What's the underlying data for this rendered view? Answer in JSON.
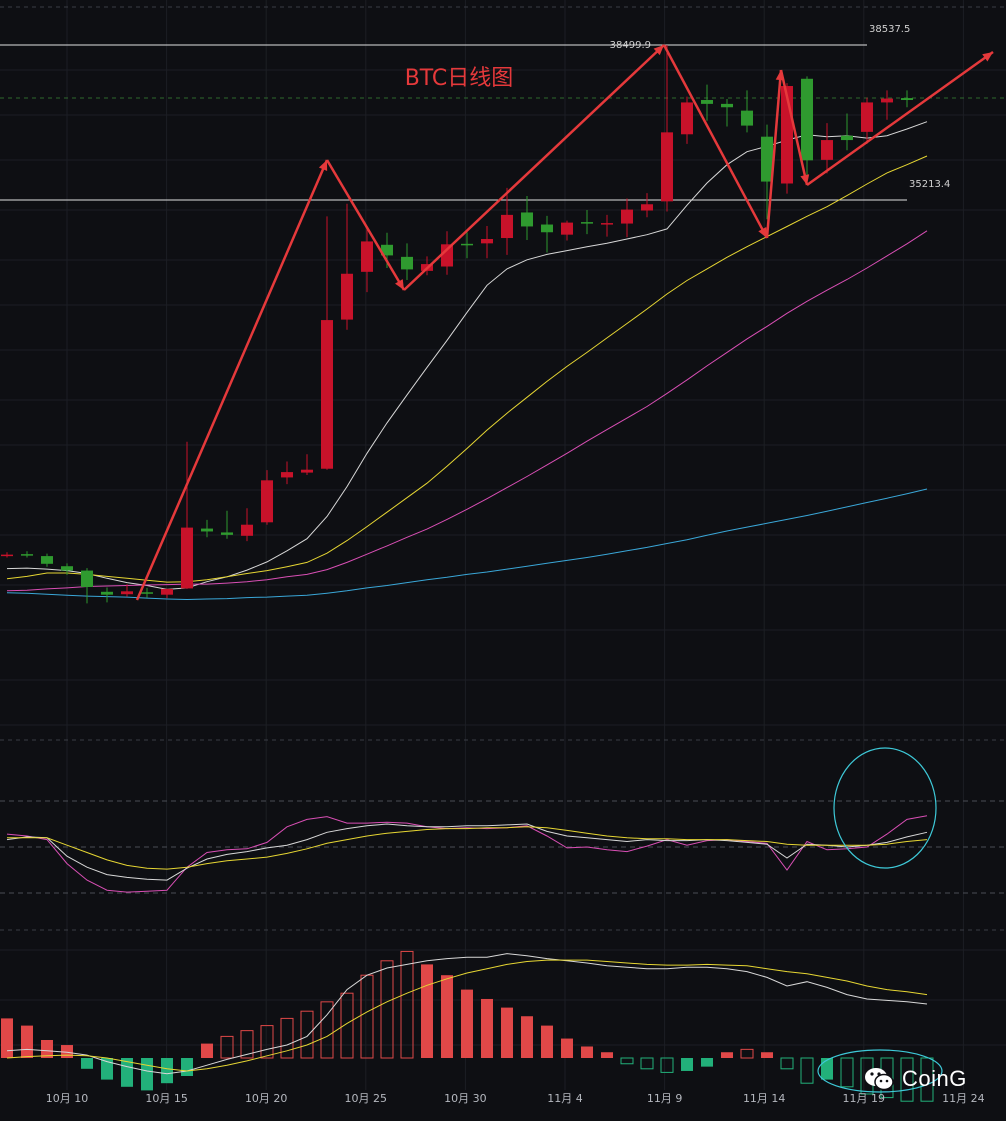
{
  "chart_data": [
    {
      "type": "candlestick",
      "title": "BTC日线图",
      "x_ticks": [
        "10月 10",
        "10月 15",
        "10月 20",
        "10月 25",
        "10月 30",
        "11月 4",
        "11月 9",
        "11月 14",
        "11月 19",
        "11月 24"
      ],
      "price_levels": [
        {
          "label": "38537.5",
          "value": 38537.5
        },
        {
          "label": "38499.9",
          "value": 38499.9
        },
        {
          "label": "35213.4",
          "value": 35213.4
        }
      ],
      "y_range": [
        26800,
        39300
      ],
      "candles": [
        {
          "date": "10-08",
          "o": 27940,
          "h": 27990,
          "l": 27880,
          "c": 27940,
          "color": "red"
        },
        {
          "date": "10-09",
          "o": 27940,
          "h": 28010,
          "l": 27880,
          "c": 27950,
          "color": "green"
        },
        {
          "date": "10-10",
          "o": 27910,
          "h": 27960,
          "l": 27690,
          "c": 27750,
          "color": "green"
        },
        {
          "date": "10-11",
          "o": 27700,
          "h": 27760,
          "l": 27520,
          "c": 27610,
          "color": "green"
        },
        {
          "date": "10-12",
          "o": 27610,
          "h": 27660,
          "l": 26930,
          "c": 27270,
          "color": "green"
        },
        {
          "date": "10-13",
          "o": 27170,
          "h": 27260,
          "l": 26950,
          "c": 27110,
          "color": "green"
        },
        {
          "date": "10-14",
          "o": 27120,
          "h": 27330,
          "l": 27070,
          "c": 27180,
          "color": "red"
        },
        {
          "date": "10-15",
          "o": 27160,
          "h": 27250,
          "l": 27050,
          "c": 27150,
          "color": "green"
        },
        {
          "date": "10-16",
          "o": 27110,
          "h": 27230,
          "l": 27040,
          "c": 27230,
          "color": "red"
        },
        {
          "date": "10-17",
          "o": 27240,
          "h": 30280,
          "l": 27230,
          "c": 28500,
          "color": "red"
        },
        {
          "date": "10-18",
          "o": 28480,
          "h": 28660,
          "l": 28300,
          "c": 28420,
          "color": "green"
        },
        {
          "date": "10-19",
          "o": 28400,
          "h": 28850,
          "l": 28270,
          "c": 28350,
          "color": "green"
        },
        {
          "date": "10-20",
          "o": 28330,
          "h": 28900,
          "l": 28220,
          "c": 28560,
          "color": "red"
        },
        {
          "date": "10-21",
          "o": 28610,
          "h": 29690,
          "l": 28560,
          "c": 29480,
          "color": "red"
        },
        {
          "date": "10-22",
          "o": 29540,
          "h": 29870,
          "l": 29400,
          "c": 29650,
          "color": "red"
        },
        {
          "date": "10-23",
          "o": 29640,
          "h": 30020,
          "l": 29590,
          "c": 29700,
          "color": "red"
        },
        {
          "date": "10-24",
          "o": 29720,
          "h": 34950,
          "l": 29700,
          "c": 32800,
          "color": "red"
        },
        {
          "date": "10-25",
          "o": 32810,
          "h": 35210,
          "l": 32600,
          "c": 33760,
          "color": "red"
        },
        {
          "date": "10-26",
          "o": 33800,
          "h": 34700,
          "l": 33380,
          "c": 34430,
          "color": "red"
        },
        {
          "date": "10-27",
          "o": 34360,
          "h": 34610,
          "l": 33880,
          "c": 34140,
          "color": "green"
        },
        {
          "date": "10-28",
          "o": 34110,
          "h": 34390,
          "l": 33630,
          "c": 33850,
          "color": "green"
        },
        {
          "date": "10-29",
          "o": 33820,
          "h": 34120,
          "l": 33730,
          "c": 33960,
          "color": "red"
        },
        {
          "date": "10-30",
          "o": 33910,
          "h": 34640,
          "l": 33740,
          "c": 34370,
          "color": "red"
        },
        {
          "date": "10-31",
          "o": 34360,
          "h": 34620,
          "l": 34080,
          "c": 34380,
          "color": "green"
        },
        {
          "date": "11-01",
          "o": 34390,
          "h": 34750,
          "l": 34080,
          "c": 34480,
          "color": "red"
        },
        {
          "date": "11-02",
          "o": 34500,
          "h": 35540,
          "l": 34150,
          "c": 34980,
          "color": "red"
        },
        {
          "date": "11-03",
          "o": 35030,
          "h": 35370,
          "l": 34460,
          "c": 34740,
          "color": "green"
        },
        {
          "date": "11-04",
          "o": 34780,
          "h": 34960,
          "l": 34200,
          "c": 34620,
          "color": "green"
        },
        {
          "date": "11-05",
          "o": 34570,
          "h": 34860,
          "l": 34450,
          "c": 34820,
          "color": "red"
        },
        {
          "date": "11-06",
          "o": 34830,
          "h": 35080,
          "l": 34580,
          "c": 34810,
          "color": "green"
        },
        {
          "date": "11-07",
          "o": 34790,
          "h": 34980,
          "l": 34530,
          "c": 34810,
          "color": "red"
        },
        {
          "date": "11-08",
          "o": 34800,
          "h": 35320,
          "l": 34520,
          "c": 35090,
          "color": "red"
        },
        {
          "date": "11-09",
          "o": 35070,
          "h": 35430,
          "l": 34930,
          "c": 35200,
          "color": "red"
        },
        {
          "date": "11-10",
          "o": 35260,
          "h": 38500,
          "l": 35050,
          "c": 36690,
          "color": "red"
        },
        {
          "date": "11-11",
          "o": 36650,
          "h": 37430,
          "l": 36450,
          "c": 37310,
          "color": "red"
        },
        {
          "date": "11-12",
          "o": 37280,
          "h": 37680,
          "l": 36930,
          "c": 37360,
          "color": "green"
        },
        {
          "date": "11-13",
          "o": 37280,
          "h": 37380,
          "l": 36810,
          "c": 37210,
          "color": "green"
        },
        {
          "date": "11-14",
          "o": 37140,
          "h": 37560,
          "l": 36690,
          "c": 36830,
          "color": "green"
        },
        {
          "date": "11-15",
          "o": 36600,
          "h": 36850,
          "l": 34890,
          "c": 35670,
          "color": "green"
        },
        {
          "date": "11-16",
          "o": 35630,
          "h": 37710,
          "l": 35420,
          "c": 37650,
          "color": "red"
        },
        {
          "date": "11-17",
          "o": 37800,
          "h": 37850,
          "l": 35610,
          "c": 36110,
          "color": "green"
        },
        {
          "date": "11-18",
          "o": 36120,
          "h": 36880,
          "l": 35840,
          "c": 36530,
          "color": "red"
        },
        {
          "date": "11-19",
          "o": 36530,
          "h": 37080,
          "l": 36320,
          "c": 36620,
          "color": "green"
        },
        {
          "date": "11-20",
          "o": 36700,
          "h": 37410,
          "l": 36450,
          "c": 37310,
          "color": "red"
        },
        {
          "date": "11-21",
          "o": 37310,
          "h": 37560,
          "l": 36950,
          "c": 37390,
          "color": "red"
        },
        {
          "date": "11-22",
          "o": 37400,
          "h": 37560,
          "l": 37210,
          "c": 37360,
          "color": "green"
        }
      ],
      "moving_averages": [
        {
          "color": "#d8d8d8",
          "values": [
            27650,
            27660,
            27640,
            27610,
            27550,
            27450,
            27360,
            27300,
            27220,
            27250,
            27380,
            27480,
            27620,
            27790,
            28020,
            28270,
            28730,
            29350,
            30040,
            30670,
            31250,
            31820,
            32380,
            32960,
            33520,
            33860,
            34050,
            34160,
            34240,
            34320,
            34390,
            34480,
            34570,
            34690,
            35180,
            35640,
            36020,
            36290,
            36400,
            36530,
            36640,
            36600,
            36620,
            36570,
            36620,
            36760,
            36910
          ]
        },
        {
          "color": "#e6d633",
          "values": [
            27440,
            27490,
            27560,
            27560,
            27530,
            27490,
            27450,
            27410,
            27370,
            27380,
            27420,
            27480,
            27550,
            27610,
            27690,
            27780,
            27970,
            28230,
            28520,
            28820,
            29120,
            29420,
            29770,
            30140,
            30520,
            30870,
            31200,
            31530,
            31840,
            32130,
            32430,
            32730,
            33030,
            33340,
            33620,
            33860,
            34100,
            34320,
            34530,
            34740,
            34950,
            35150,
            35380,
            35620,
            35850,
            36020,
            36200
          ]
        },
        {
          "color": "#d94fb5",
          "values": [
            27190,
            27200,
            27230,
            27250,
            27280,
            27290,
            27300,
            27310,
            27320,
            27330,
            27330,
            27350,
            27380,
            27420,
            27480,
            27530,
            27630,
            27780,
            27950,
            28120,
            28300,
            28470,
            28670,
            28880,
            29100,
            29330,
            29560,
            29800,
            30040,
            30290,
            30530,
            30770,
            31010,
            31280,
            31560,
            31850,
            32130,
            32410,
            32670,
            32940,
            33190,
            33420,
            33640,
            33880,
            34130,
            34380,
            34650
          ]
        },
        {
          "color": "#3aa7d8",
          "values": [
            27150,
            27140,
            27120,
            27100,
            27080,
            27070,
            27060,
            27040,
            27020,
            27010,
            27020,
            27030,
            27050,
            27060,
            27080,
            27100,
            27140,
            27190,
            27250,
            27300,
            27360,
            27420,
            27470,
            27530,
            27580,
            27640,
            27700,
            27760,
            27820,
            27880,
            27950,
            28020,
            28090,
            28170,
            28250,
            28340,
            28430,
            28510,
            28590,
            28670,
            28750,
            28840,
            28930,
            29020,
            29110,
            29200,
            29300
          ]
        }
      ]
    },
    {
      "type": "line",
      "series": [
        {
          "color": "#d94fb5",
          "values": [
            64,
            62,
            58,
            32,
            14,
            3,
            1,
            2,
            3,
            28,
            44,
            47,
            48,
            55,
            72,
            80,
            83,
            76,
            76,
            77,
            76,
            72,
            70,
            71,
            70,
            71,
            73,
            62,
            49,
            50,
            47,
            45,
            51,
            58,
            52,
            57,
            58,
            56,
            54,
            25,
            56,
            47,
            48,
            50,
            64,
            80,
            84
          ]
        },
        {
          "color": "#d8d8d8",
          "values": [
            58,
            61,
            60,
            40,
            28,
            20,
            17,
            15,
            14,
            27,
            37,
            42,
            45,
            49,
            52,
            58,
            66,
            70,
            73,
            75,
            73,
            72,
            72,
            73,
            73,
            74,
            75,
            67,
            62,
            60,
            58,
            56,
            58,
            57,
            57,
            58,
            57,
            55,
            53,
            38,
            53,
            52,
            50,
            52,
            55,
            61,
            66
          ]
        },
        {
          "color": "#e6d633",
          "values": [
            60,
            60,
            60,
            52,
            44,
            36,
            30,
            27,
            26,
            28,
            32,
            35,
            37,
            39,
            43,
            48,
            54,
            58,
            62,
            65,
            67,
            69,
            70,
            70,
            71,
            71,
            72,
            71,
            68,
            65,
            62,
            60,
            59,
            59,
            58,
            58,
            58,
            57,
            56,
            53,
            52,
            52,
            52,
            52,
            53,
            56,
            58
          ]
        }
      ]
    },
    {
      "type": "bar",
      "histogram": [
        55,
        45,
        25,
        18,
        -15,
        -30,
        -40,
        -45,
        -35,
        -25,
        20,
        30,
        38,
        45,
        55,
        65,
        78,
        90,
        115,
        135,
        148,
        130,
        115,
        95,
        82,
        70,
        58,
        45,
        27,
        16,
        8,
        -8,
        -15,
        -20,
        -18,
        -12,
        8,
        12,
        8,
        -15,
        -35,
        -30,
        -40,
        -50,
        -55,
        -60,
        -60
      ],
      "lines": [
        {
          "color": "#d8d8d8",
          "values": [
            10,
            12,
            10,
            8,
            4,
            -5,
            -12,
            -18,
            -22,
            -18,
            -10,
            -2,
            5,
            12,
            18,
            30,
            60,
            95,
            115,
            125,
            130,
            135,
            138,
            140,
            140,
            145,
            142,
            138,
            135,
            132,
            128,
            126,
            124,
            124,
            126,
            126,
            124,
            120,
            112,
            100,
            106,
            98,
            88,
            82,
            80,
            78,
            75
          ]
        },
        {
          "color": "#e6d633",
          "values": [
            0,
            2,
            3,
            4,
            3,
            0,
            -5,
            -10,
            -15,
            -18,
            -15,
            -10,
            -4,
            3,
            10,
            18,
            30,
            48,
            64,
            78,
            90,
            101,
            110,
            118,
            124,
            130,
            134,
            136,
            136,
            136,
            134,
            132,
            130,
            129,
            129,
            130,
            129,
            128,
            124,
            120,
            117,
            112,
            107,
            100,
            95,
            92,
            88
          ]
        }
      ]
    }
  ],
  "watermark": {
    "text": "CoinG"
  }
}
